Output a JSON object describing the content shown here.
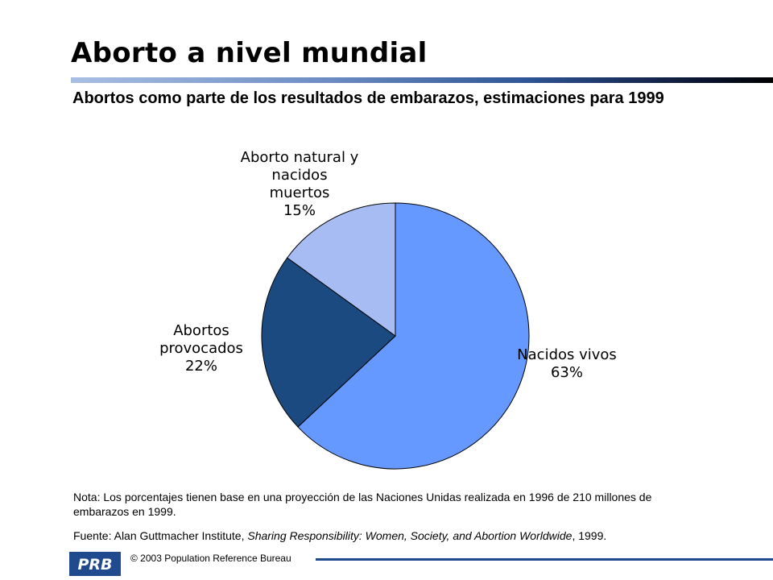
{
  "header": {
    "title": "Aborto a nivel mundial",
    "subtitle": "Abortos como parte de los resultados de embarazos, estimaciones para 1999"
  },
  "chart_data": {
    "type": "pie",
    "title": "Abortos como parte de los resultados de embarazos, estimaciones para 1999",
    "start_angle_deg": 0,
    "direction": "clockwise",
    "slices": [
      {
        "label_lines": [
          "Nacidos vivos",
          "63%"
        ],
        "name": "Nacidos vivos",
        "value": 63,
        "value_label": "63%",
        "color": "#6699ff"
      },
      {
        "label_lines": [
          "Abortos",
          "provocados",
          "22%"
        ],
        "name": "Abortos provocados",
        "value": 22,
        "value_label": "22%",
        "color": "#1b4a80"
      },
      {
        "label_lines": [
          "Aborto natural y",
          "nacidos",
          "muertos",
          "15%"
        ],
        "name": "Aborto natural y nacidos muertos",
        "value": 15,
        "value_label": "15%",
        "color": "#a6bcf3"
      }
    ]
  },
  "notes": {
    "nota_label": "Nota:",
    "nota_text": "Los porcentajes tienen base en una proyección de las Naciones Unidas realizada en 1996 de 210 millones de embarazos en 1999.",
    "fuente_label": "Fuente:",
    "fuente_prefix": "Alan Guttmacher Institute, ",
    "fuente_italic": "Sharing Responsibility: Women, Society, and Abortion Worldwide",
    "fuente_suffix": ", 1999."
  },
  "footer": {
    "logo_text": "PRB",
    "copyright": "© 2003  Population Reference Bureau",
    "brand_color": "#1f4b8e"
  }
}
